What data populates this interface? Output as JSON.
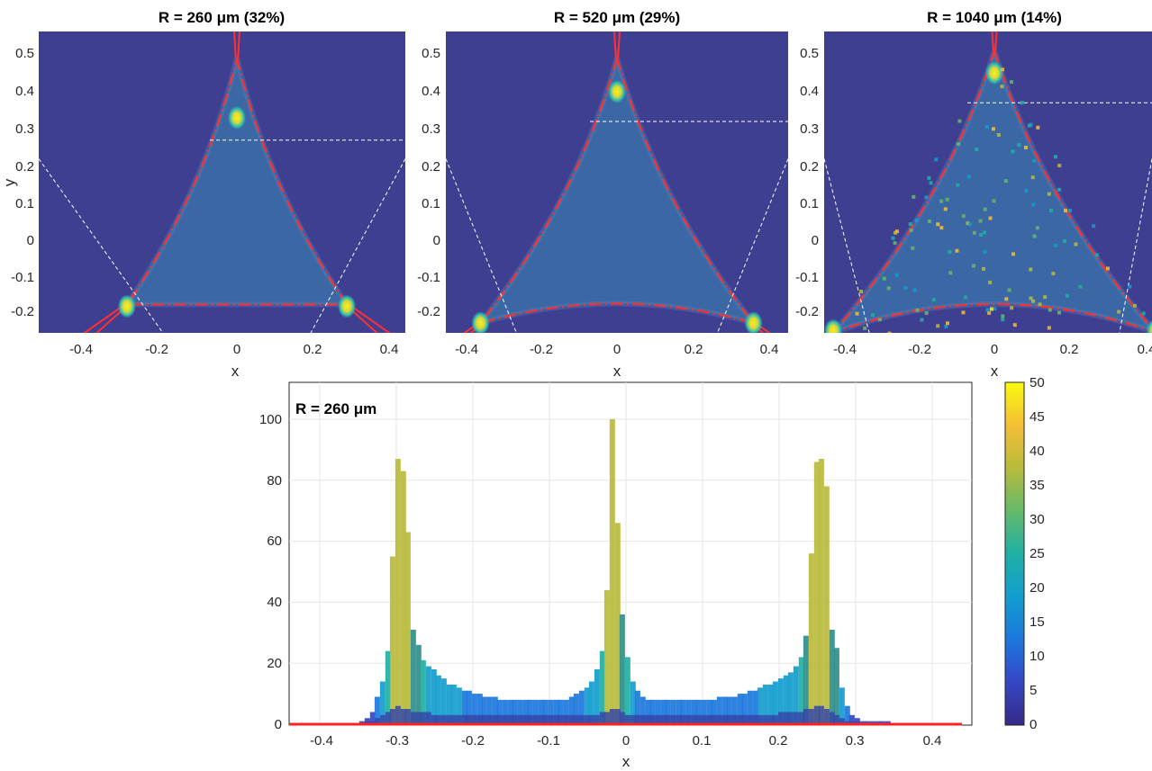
{
  "chart_data": [
    {
      "type": "heatmap",
      "title": "R = 260 μm (32%)",
      "xlabel": "x",
      "ylabel": "y",
      "xlim": [
        -0.45,
        0.45
      ],
      "ylim": [
        -0.25,
        0.55
      ],
      "xticks": [
        "-0.4",
        "-0.2",
        "0",
        "0.2",
        "0.4"
      ],
      "yticks": [
        "-0.2",
        "-0.1",
        "0",
        "0.1",
        "0.2",
        "0.3",
        "0.4",
        "0.5"
      ],
      "triangle": {
        "apex_y": 0.5,
        "bottom_y": -0.16,
        "corner_x": 0.29,
        "corner_y": -0.16
      },
      "hotspots": [
        {
          "x": 0,
          "y": 0.34
        },
        {
          "x": -0.29,
          "y": -0.165
        },
        {
          "x": 0.29,
          "y": -0.165
        }
      ],
      "dashed_hline_y": 0.28,
      "colors": {
        "background": "#3f3f91",
        "fill": "#3a6aa6",
        "boundary": "#ff3030",
        "hot": "#f6e52a"
      }
    },
    {
      "type": "heatmap",
      "title": "R = 520 μm (29%)",
      "xlabel": "x",
      "ylabel": "",
      "xlim": [
        -0.45,
        0.45
      ],
      "ylim": [
        -0.25,
        0.55
      ],
      "xticks": [
        "-0.4",
        "-0.2",
        "0",
        "0.2",
        "0.4"
      ],
      "yticks": [
        "-0.2",
        "-0.1",
        "0",
        "0.1",
        "0.2",
        "0.3",
        "0.4",
        "0.5"
      ],
      "triangle": {
        "apex_y": 0.5,
        "bottom_y": -0.155,
        "corner_x": 0.36,
        "corner_y": -0.21
      },
      "hotspots": [
        {
          "x": 0,
          "y": 0.41
        },
        {
          "x": -0.36,
          "y": -0.21
        },
        {
          "x": 0.36,
          "y": -0.21
        }
      ],
      "dashed_hline_y": 0.33,
      "colors": {
        "background": "#3f3f91",
        "fill": "#3a6aa6",
        "boundary": "#ff3030",
        "hot": "#f6e52a"
      }
    },
    {
      "type": "heatmap",
      "title": "R = 1040 μm (14%)",
      "xlabel": "x",
      "ylabel": "",
      "xlim": [
        -0.45,
        0.45
      ],
      "ylim": [
        -0.25,
        0.55
      ],
      "xticks": [
        "-0.4",
        "-0.2",
        "0",
        "0.2",
        "0.4"
      ],
      "yticks": [
        "-0.2",
        "-0.1",
        "0",
        "0.1",
        "0.2",
        "0.3",
        "0.4",
        "0.5"
      ],
      "triangle": {
        "apex_y": 0.52,
        "bottom_y": -0.155,
        "corner_x": 0.43,
        "corner_y": -0.235
      },
      "hotspots": [
        {
          "x": 0,
          "y": 0.46
        },
        {
          "x": -0.43,
          "y": -0.23
        },
        {
          "x": 0.43,
          "y": -0.23
        }
      ],
      "dashed_hline_y": 0.38,
      "colors": {
        "background": "#3f3f91",
        "fill": "#3a6aa6",
        "boundary": "#ff3030",
        "hot": "#f6e52a"
      }
    },
    {
      "type": "bar",
      "annotation": "R = 260 μm",
      "xlabel": "x",
      "ylabel": "",
      "xlim": [
        -0.45,
        0.45
      ],
      "ylim": [
        0,
        110
      ],
      "xticks": [
        "-0.4",
        "-0.3",
        "-0.2",
        "-0.1",
        "0",
        "0.1",
        "0.2",
        "0.3",
        "0.4"
      ],
      "yticks": [
        "0",
        "20",
        "40",
        "60",
        "80",
        "100"
      ],
      "bin_width": 0.0067,
      "x": [
        -0.345,
        -0.338,
        -0.331,
        -0.325,
        -0.318,
        -0.311,
        -0.305,
        -0.298,
        -0.291,
        -0.285,
        -0.278,
        -0.271,
        -0.265,
        -0.258,
        -0.251,
        -0.245,
        -0.238,
        -0.231,
        -0.225,
        -0.218,
        -0.211,
        -0.205,
        -0.198,
        -0.191,
        -0.185,
        -0.178,
        -0.171,
        -0.165,
        -0.158,
        -0.151,
        -0.145,
        -0.138,
        -0.131,
        -0.125,
        -0.118,
        -0.111,
        -0.105,
        -0.098,
        -0.091,
        -0.085,
        -0.078,
        -0.071,
        -0.065,
        -0.058,
        -0.051,
        -0.045,
        -0.038,
        -0.031,
        -0.025,
        -0.018,
        -0.011,
        -0.005,
        0.002,
        0.009,
        0.015,
        0.022,
        0.029,
        0.035,
        0.042,
        0.049,
        0.055,
        0.062,
        0.069,
        0.075,
        0.082,
        0.089,
        0.095,
        0.102,
        0.109,
        0.115,
        0.122,
        0.129,
        0.135,
        0.142,
        0.149,
        0.155,
        0.162,
        0.169,
        0.175,
        0.182,
        0.189,
        0.195,
        0.202,
        0.209,
        0.215,
        0.222,
        0.229,
        0.235,
        0.242,
        0.249,
        0.255,
        0.262,
        0.269,
        0.275,
        0.282,
        0.289,
        0.295,
        0.302,
        0.309,
        0.315,
        0.322,
        0.329,
        0.335,
        0.342
      ],
      "series": [
        {
          "values": [
            1,
            2,
            4,
            9,
            14,
            24,
            55,
            87,
            83,
            63,
            31,
            26,
            21,
            19,
            18,
            16,
            15,
            13,
            13,
            12,
            11,
            11,
            10,
            10,
            9,
            9,
            9,
            8,
            8,
            8,
            8,
            8,
            8,
            8,
            8,
            8,
            8,
            8,
            8,
            8,
            8,
            9,
            10,
            11,
            12,
            14,
            18,
            24,
            44,
            100,
            66,
            36,
            22,
            14,
            11,
            9,
            8,
            8,
            8,
            8,
            8,
            8,
            8,
            8,
            8,
            8,
            8,
            8,
            8,
            8,
            9,
            9,
            9,
            9,
            10,
            10,
            11,
            11,
            12,
            13,
            13,
            14,
            15,
            16,
            17,
            19,
            22,
            29,
            56,
            86,
            87,
            78,
            31,
            25,
            12,
            6,
            3,
            2,
            1,
            1,
            1,
            1,
            1,
            1
          ]
        },
        {
          "values": [
            0,
            1,
            1,
            2,
            3,
            4,
            5,
            6,
            5,
            5,
            4,
            4,
            4,
            4,
            3,
            3,
            3,
            3,
            3,
            3,
            3,
            3,
            3,
            3,
            3,
            3,
            3,
            3,
            3,
            3,
            3,
            3,
            3,
            3,
            3,
            3,
            3,
            3,
            3,
            3,
            3,
            3,
            3,
            3,
            3,
            3,
            3,
            4,
            4,
            5,
            5,
            4,
            3,
            3,
            3,
            3,
            3,
            3,
            3,
            3,
            3,
            3,
            3,
            3,
            3,
            3,
            3,
            3,
            3,
            3,
            3,
            3,
            3,
            3,
            3,
            3,
            3,
            3,
            3,
            3,
            3,
            3,
            4,
            4,
            4,
            4,
            4,
            5,
            5,
            6,
            6,
            5,
            4,
            3,
            2,
            1,
            1,
            1,
            0,
            0,
            0,
            0,
            0,
            0
          ]
        }
      ],
      "colorbar": {
        "min": 0,
        "max": 50,
        "ticks": [
          "0",
          "5",
          "10",
          "15",
          "20",
          "25",
          "30",
          "35",
          "40",
          "45",
          "50"
        ]
      },
      "colors": {
        "zero_line": "#ff2020"
      }
    }
  ]
}
